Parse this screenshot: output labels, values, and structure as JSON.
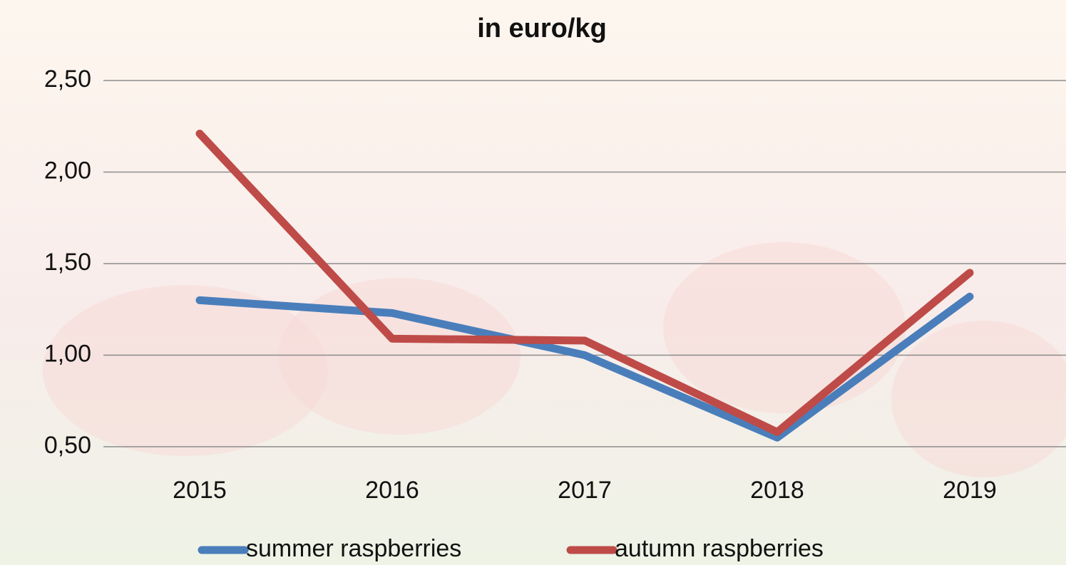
{
  "chart_data": {
    "type": "line",
    "title": "in euro/kg",
    "categories": [
      "2015",
      "2016",
      "2017",
      "2018",
      "2019"
    ],
    "series": [
      {
        "name": "summer raspberries",
        "color": "#4a7ebb",
        "values": [
          1.3,
          1.23,
          1.0,
          0.55,
          1.32
        ]
      },
      {
        "name": "autumn raspberries",
        "color": "#be4b48",
        "values": [
          2.21,
          1.09,
          1.08,
          0.58,
          1.45
        ]
      }
    ],
    "ylim": [
      0.5,
      2.5
    ],
    "yticks": [
      {
        "value": 0.5,
        "label": "0,50"
      },
      {
        "value": 1.0,
        "label": "1,00"
      },
      {
        "value": 1.5,
        "label": "1,50"
      },
      {
        "value": 2.0,
        "label": "2,00"
      },
      {
        "value": 2.5,
        "label": "2,50"
      }
    ],
    "grid": true
  }
}
